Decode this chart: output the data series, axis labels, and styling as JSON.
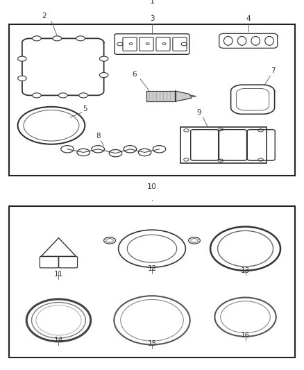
{
  "bg_color": "#ffffff",
  "line_color": "#333333",
  "figsize": [
    4.38,
    5.33
  ],
  "dpi": 100,
  "panel1_label": "1",
  "panel2_label": "10",
  "gray_light": "#aaaaaa",
  "gray_mid": "#666666",
  "gray_dark": "#333333"
}
